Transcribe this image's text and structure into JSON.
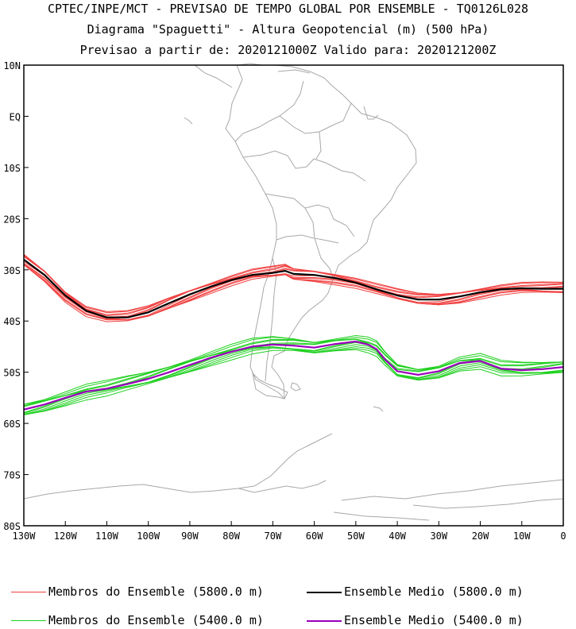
{
  "header": {
    "title_line1": "CPTEC/INPE/MCT - PREVISAO DE TEMPO GLOBAL POR ENSEMBLE - TQ0126L028",
    "title_line2": "Diagrama \"Spaguetti\" - Altura Geopotencial (m) (500 hPa)",
    "title_line3": "Previsao a partir de: 2020121000Z  Valido para: 2020121200Z"
  },
  "colors": {
    "member_5800": "#f04040",
    "mean_5800": "#000000",
    "member_5400": "#20d020",
    "mean_5400": "#9900bb",
    "coastline": "#a8a8a8"
  },
  "legend": [
    {
      "label": "Membros do Ensemble (5800.0 m)",
      "color": "#f04040",
      "weight": "thin"
    },
    {
      "label": "Ensemble Medio (5800.0 m)",
      "color": "#000000",
      "weight": "thick"
    },
    {
      "label": "Membros do Ensemble (5400.0 m)",
      "color": "#20d020",
      "weight": "thin"
    },
    {
      "label": "Ensemble Medio (5400.0 m)",
      "color": "#9900bb",
      "weight": "thick"
    }
  ],
  "chart_data": {
    "type": "line",
    "title": "Diagrama \"Spaguetti\" - Altura Geopotencial (m) (500 hPa)",
    "xlim": [
      -130,
      0
    ],
    "ylim": [
      -80,
      10
    ],
    "x_ticks": [
      -130,
      -120,
      -110,
      -100,
      -90,
      -80,
      -70,
      -60,
      -50,
      -40,
      -30,
      -20,
      -10,
      0
    ],
    "x_tick_labels": [
      "130W",
      "120W",
      "110W",
      "100W",
      "90W",
      "80W",
      "70W",
      "60W",
      "50W",
      "40W",
      "30W",
      "20W",
      "10W",
      "0"
    ],
    "y_ticks": [
      10,
      0,
      -10,
      -20,
      -30,
      -40,
      -50,
      -60,
      -70,
      -80
    ],
    "y_tick_labels": [
      "10N",
      "EQ",
      "10S",
      "20S",
      "30S",
      "40S",
      "50S",
      "60S",
      "70S",
      "80S"
    ],
    "grid": false,
    "series": [
      {
        "name": "Ensemble Medio (5800.0 m)",
        "lon": [
          -130,
          -125,
          -120,
          -115,
          -110,
          -105,
          -100,
          -95,
          -90,
          -85,
          -80,
          -75,
          -70,
          -67,
          -65,
          -60,
          -55,
          -50,
          -45,
          -40,
          -35,
          -30,
          -25,
          -20,
          -15,
          -10,
          -5,
          0
        ],
        "lat": [
          -28,
          -31,
          -35,
          -38,
          -39.3,
          -39.3,
          -38.3,
          -36.5,
          -34.8,
          -33.3,
          -32,
          -31,
          -30.6,
          -30.2,
          -30.8,
          -31,
          -31.6,
          -32.5,
          -33.8,
          -35,
          -35.8,
          -35.8,
          -35.2,
          -34.4,
          -33.8,
          -33.6,
          -33.7,
          -33.7
        ]
      },
      {
        "name": "Ensemble Medio (5400.0 m)",
        "lon": [
          -130,
          -125,
          -120,
          -115,
          -110,
          -105,
          -100,
          -95,
          -90,
          -85,
          -80,
          -75,
          -70,
          -65,
          -60,
          -55,
          -50,
          -47,
          -45,
          -43,
          -40,
          -35,
          -30,
          -25,
          -20,
          -15,
          -10,
          -5,
          0
        ],
        "lat": [
          -57.3,
          -56.3,
          -55,
          -53.8,
          -53.2,
          -52.3,
          -51.3,
          -50,
          -48.6,
          -47.2,
          -46,
          -45,
          -44.6,
          -44.8,
          -45.2,
          -44.5,
          -44,
          -44.6,
          -45.5,
          -47.5,
          -49.8,
          -50.5,
          -49.8,
          -48.2,
          -47.8,
          -49.3,
          -49.6,
          -49.4,
          -49
        ]
      }
    ],
    "member_offsets_5800": [
      0,
      0.4,
      -0.4,
      0.7,
      -0.7,
      0.9,
      -0.5,
      0.3,
      -0.8,
      0.6,
      -0.2,
      1.0,
      -1.0
    ],
    "member_offsets_5400": [
      0,
      0.4,
      -0.4,
      0.8,
      -0.8,
      1.1,
      -0.6,
      0.3,
      -1.0,
      0.7,
      -0.3,
      1.3,
      -1.3
    ]
  }
}
